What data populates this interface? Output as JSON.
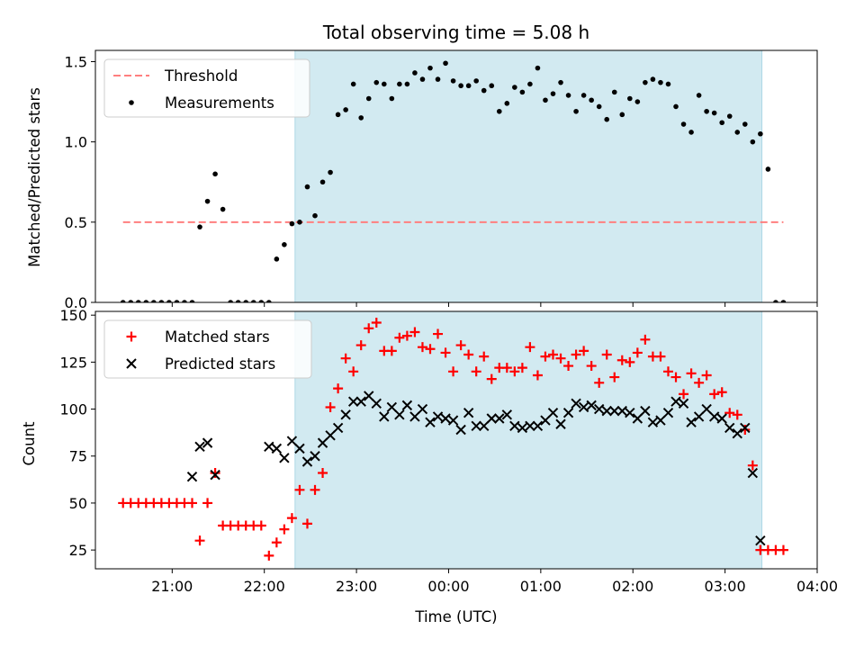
{
  "title": "Total observing time = 5.08 h",
  "colors": {
    "shade": "#add8e6",
    "threshold": "#ff7f7f",
    "measurement": "#000000",
    "matched": "#ff0000",
    "predicted": "#000000"
  },
  "chart_data": [
    {
      "type": "scatter",
      "ylabel": "Matched/Predicted stars",
      "ylim": [
        0,
        1.57
      ],
      "yticks": [
        0.0,
        0.5,
        1.0,
        1.5
      ],
      "ytick_labels": [
        "0.0",
        "0.5",
        "1.0",
        "1.5"
      ],
      "xlim": [
        "20:10",
        "04:00"
      ],
      "shaded_interval": [
        "22:20",
        "03:24"
      ],
      "legend": {
        "position": "upper left",
        "entries": [
          "Threshold",
          "Measurements"
        ]
      },
      "threshold": {
        "name": "Threshold",
        "y": 0.5,
        "x": [
          "20:28",
          "03:38"
        ]
      },
      "series": [
        {
          "name": "Measurements",
          "x": [
            "20:28",
            "20:33",
            "20:38",
            "20:43",
            "20:48",
            "20:53",
            "20:58",
            "21:03",
            "21:08",
            "21:13",
            "21:18",
            "21:23",
            "21:28",
            "21:33",
            "21:38",
            "21:43",
            "21:48",
            "21:53",
            "21:58",
            "22:03",
            "22:08",
            "22:13",
            "22:18",
            "22:23",
            "22:28",
            "22:33",
            "22:38",
            "22:43",
            "22:48",
            "22:53",
            "22:58",
            "23:03",
            "23:08",
            "23:13",
            "23:18",
            "23:23",
            "23:28",
            "23:33",
            "23:38",
            "23:43",
            "23:48",
            "23:53",
            "23:58",
            "00:03",
            "00:08",
            "00:13",
            "00:18",
            "00:23",
            "00:28",
            "00:33",
            "00:38",
            "00:43",
            "00:48",
            "00:53",
            "00:58",
            "01:03",
            "01:08",
            "01:13",
            "01:18",
            "01:23",
            "01:28",
            "01:33",
            "01:38",
            "01:43",
            "01:48",
            "01:53",
            "01:58",
            "02:03",
            "02:08",
            "02:13",
            "02:18",
            "02:23",
            "02:28",
            "02:33",
            "02:38",
            "02:43",
            "02:48",
            "02:53",
            "02:58",
            "03:03",
            "03:08",
            "03:13",
            "03:18",
            "03:23",
            "03:28",
            "03:33",
            "03:38"
          ],
          "y": [
            0.0,
            0.0,
            0.0,
            0.0,
            0.0,
            0.0,
            0.0,
            0.0,
            0.0,
            0.0,
            0.47,
            0.63,
            0.8,
            0.58,
            0.0,
            0.0,
            0.0,
            0.0,
            0.0,
            0.0,
            0.27,
            0.36,
            0.49,
            0.5,
            0.72,
            0.54,
            0.75,
            0.81,
            1.17,
            1.2,
            1.36,
            1.15,
            1.27,
            1.37,
            1.36,
            1.27,
            1.36,
            1.36,
            1.43,
            1.39,
            1.46,
            1.39,
            1.49,
            1.38,
            1.35,
            1.35,
            1.38,
            1.32,
            1.35,
            1.19,
            1.24,
            1.34,
            1.31,
            1.36,
            1.46,
            1.26,
            1.3,
            1.37,
            1.29,
            1.19,
            1.29,
            1.26,
            1.22,
            1.14,
            1.31,
            1.17,
            1.27,
            1.25,
            1.37,
            1.39,
            1.37,
            1.36,
            1.22,
            1.11,
            1.06,
            1.29,
            1.19,
            1.18,
            1.12,
            1.16,
            1.06,
            1.11,
            1.0,
            1.05,
            0.83,
            0.0,
            0.0
          ]
        }
      ]
    },
    {
      "type": "scatter",
      "ylabel": "Count",
      "xlabel": "Time (UTC)",
      "ylim": [
        15,
        152
      ],
      "yticks": [
        25,
        50,
        75,
        100,
        125,
        150
      ],
      "ytick_labels": [
        "25",
        "50",
        "75",
        "100",
        "125",
        "150"
      ],
      "xlim": [
        "20:10",
        "04:00"
      ],
      "xticks": [
        "21:00",
        "22:00",
        "23:00",
        "00:00",
        "01:00",
        "02:00",
        "03:00",
        "04:00"
      ],
      "xtick_labels": [
        "21:00",
        "22:00",
        "23:00",
        "00:00",
        "01:00",
        "02:00",
        "03:00",
        "04:00"
      ],
      "shaded_interval": [
        "22:20",
        "03:24"
      ],
      "legend": {
        "position": "upper left",
        "entries": [
          "Matched stars",
          "Predicted stars"
        ]
      },
      "series": [
        {
          "name": "Matched stars",
          "x": [
            "20:28",
            "20:33",
            "20:38",
            "20:43",
            "20:48",
            "20:53",
            "20:58",
            "21:03",
            "21:08",
            "21:13",
            "21:18",
            "21:23",
            "21:28",
            "21:33",
            "21:38",
            "21:43",
            "21:48",
            "21:53",
            "21:58",
            "22:03",
            "22:08",
            "22:13",
            "22:18",
            "22:23",
            "22:28",
            "22:33",
            "22:38",
            "22:43",
            "22:48",
            "22:53",
            "22:58",
            "23:03",
            "23:08",
            "23:13",
            "23:18",
            "23:23",
            "23:28",
            "23:33",
            "23:38",
            "23:43",
            "23:48",
            "23:53",
            "23:58",
            "00:03",
            "00:08",
            "00:13",
            "00:18",
            "00:23",
            "00:28",
            "00:33",
            "00:38",
            "00:43",
            "00:48",
            "00:53",
            "00:58",
            "01:03",
            "01:08",
            "01:13",
            "01:18",
            "01:23",
            "01:28",
            "01:33",
            "01:38",
            "01:43",
            "01:48",
            "01:53",
            "01:58",
            "02:03",
            "02:08",
            "02:13",
            "02:18",
            "02:23",
            "02:28",
            "02:33",
            "02:38",
            "02:43",
            "02:48",
            "02:53",
            "02:58",
            "03:03",
            "03:08",
            "03:13",
            "03:18",
            "03:23",
            "03:28",
            "03:33",
            "03:38"
          ],
          "y": [
            50,
            50,
            50,
            50,
            50,
            50,
            50,
            50,
            50,
            50,
            30,
            50,
            66,
            38,
            38,
            38,
            38,
            38,
            38,
            22,
            29,
            36,
            42,
            57,
            39,
            57,
            66,
            101,
            111,
            127,
            120,
            134,
            143,
            146,
            131,
            131,
            138,
            139,
            141,
            133,
            132,
            140,
            130,
            120,
            134,
            129,
            120,
            128,
            116,
            122,
            122,
            120,
            122,
            133,
            118,
            128,
            129,
            127,
            123,
            129,
            131,
            123,
            114,
            129,
            117,
            126,
            125,
            130,
            137,
            128,
            128,
            120,
            117,
            108,
            119,
            114,
            118,
            108,
            109,
            98,
            97,
            89,
            70,
            25,
            25,
            25,
            25
          ],
          "note": "matched"
        },
        {
          "name": "Predicted stars",
          "x": [
            "21:13",
            "21:18",
            "21:23",
            "21:28",
            "22:03",
            "22:08",
            "22:13",
            "22:18",
            "22:23",
            "22:28",
            "22:33",
            "22:38",
            "22:43",
            "22:48",
            "22:53",
            "22:58",
            "23:03",
            "23:08",
            "23:13",
            "23:18",
            "23:23",
            "23:28",
            "23:33",
            "23:38",
            "23:43",
            "23:48",
            "23:53",
            "23:58",
            "00:03",
            "00:08",
            "00:13",
            "00:18",
            "00:23",
            "00:28",
            "00:33",
            "00:38",
            "00:43",
            "00:48",
            "00:53",
            "00:58",
            "01:03",
            "01:08",
            "01:13",
            "01:18",
            "01:23",
            "01:28",
            "01:33",
            "01:38",
            "01:43",
            "01:48",
            "01:53",
            "01:58",
            "02:03",
            "02:08",
            "02:13",
            "02:18",
            "02:23",
            "02:28",
            "02:33",
            "02:38",
            "02:43",
            "02:48",
            "02:53",
            "02:58",
            "03:03",
            "03:08",
            "03:13",
            "03:18",
            "03:23"
          ],
          "y": [
            64,
            80,
            82,
            65,
            80,
            79,
            74,
            83,
            79,
            72,
            75,
            82,
            86,
            90,
            97,
            104,
            104,
            107,
            103,
            96,
            101,
            97,
            102,
            96,
            100,
            93,
            96,
            95,
            94,
            89,
            98,
            91,
            91,
            95,
            95,
            97,
            91,
            90,
            91,
            91,
            94,
            98,
            92,
            98,
            103,
            101,
            102,
            100,
            99,
            99,
            99,
            98,
            95,
            99,
            93,
            94,
            98,
            104,
            103,
            93,
            96,
            100,
            96,
            95,
            90,
            87,
            90,
            66,
            30
          ]
        }
      ]
    }
  ]
}
